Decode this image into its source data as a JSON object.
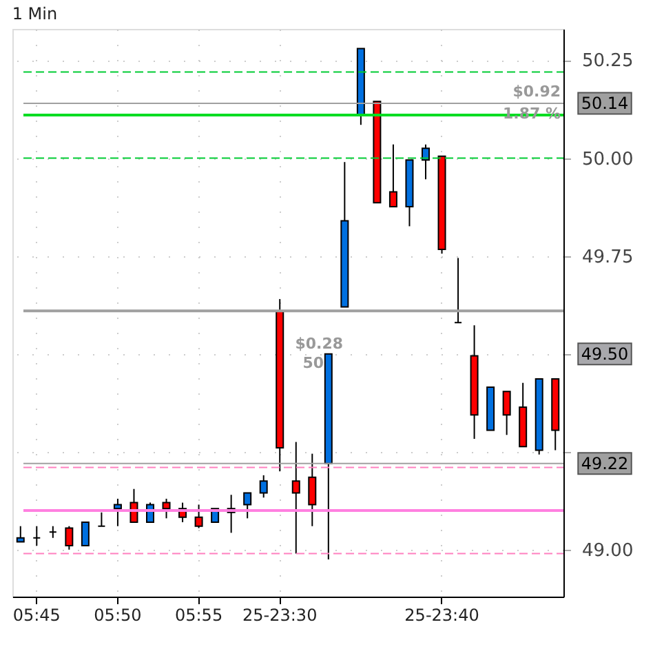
{
  "chart_data": {
    "type": "candlestick",
    "title": "1 Min",
    "categories": [
      null,
      "05:45",
      null,
      null,
      null,
      null,
      "05:50",
      null,
      null,
      null,
      null,
      "05:55",
      null,
      null,
      null,
      null,
      "25-23:30",
      null,
      null,
      null,
      null,
      null,
      null,
      null,
      null,
      null,
      "25-23:40",
      null,
      null,
      null,
      null,
      null,
      null,
      null
    ],
    "ohlc": [
      [
        49.02,
        49.06,
        49.02,
        49.03
      ],
      [
        49.03,
        49.06,
        49.01,
        49.03
      ],
      [
        49.045,
        49.06,
        49.03,
        49.045
      ],
      [
        49.055,
        49.06,
        49.0,
        49.01
      ],
      [
        49.01,
        49.07,
        49.01,
        49.07
      ],
      [
        49.06,
        49.095,
        49.06,
        49.06
      ],
      [
        49.105,
        49.13,
        49.06,
        49.115
      ],
      [
        49.12,
        49.155,
        49.07,
        49.07
      ],
      [
        49.07,
        49.12,
        49.07,
        49.115
      ],
      [
        49.12,
        49.13,
        49.08,
        49.105
      ],
      [
        49.105,
        49.12,
        49.07,
        49.083
      ],
      [
        49.083,
        49.115,
        49.055,
        49.06
      ],
      [
        49.07,
        49.105,
        49.07,
        49.105
      ],
      [
        49.095,
        49.14,
        49.043,
        49.105
      ],
      [
        49.115,
        49.145,
        49.08,
        49.145
      ],
      [
        49.145,
        49.19,
        49.133,
        49.175
      ],
      [
        49.61,
        49.64,
        49.2,
        49.26
      ],
      [
        49.175,
        49.275,
        48.99,
        49.145
      ],
      [
        49.185,
        49.245,
        49.06,
        49.115
      ],
      [
        49.22,
        49.5,
        48.975,
        49.5
      ],
      [
        49.62,
        49.99,
        49.62,
        49.84
      ],
      [
        50.11,
        50.28,
        50.085,
        50.28
      ],
      [
        50.145,
        50.145,
        49.886,
        49.886
      ],
      [
        49.914,
        50.035,
        49.876,
        49.876
      ],
      [
        49.876,
        49.995,
        49.826,
        49.995
      ],
      [
        49.995,
        50.035,
        49.946,
        50.025
      ],
      [
        50.005,
        50.005,
        49.756,
        49.767
      ],
      [
        49.58,
        49.745,
        49.58,
        49.58
      ],
      [
        49.495,
        49.573,
        49.283,
        49.344
      ],
      [
        49.305,
        49.415,
        49.305,
        49.415
      ],
      [
        49.404,
        49.404,
        49.293,
        49.344
      ],
      [
        49.364,
        49.426,
        49.263,
        49.263
      ],
      [
        49.254,
        49.436,
        49.243,
        49.436
      ],
      [
        49.436,
        49.436,
        49.254,
        49.305
      ]
    ],
    "colors": [
      "#0070e0",
      "#000000",
      "#000000",
      "#ff0000",
      "#0070e0",
      "#000000",
      "#0070e0",
      "#ff0000",
      "#0070e0",
      "#ff0000",
      "#ff0000",
      "#ff0000",
      "#0070e0",
      "#0070e0",
      "#0070e0",
      "#0070e0",
      "#ff0000",
      "#ff0000",
      "#ff0000",
      "#0070e0",
      "#0070e0",
      "#0070e0",
      "#ff0000",
      "#ff0000",
      "#0070e0",
      "#0070e0",
      "#ff0000",
      "#000000",
      "#ff0000",
      "#0070e0",
      "#ff0000",
      "#ff0000",
      "#0070e0",
      "#ff0000"
    ],
    "ylim": [
      48.88,
      50.33
    ],
    "yticks": [
      {
        "value": 49,
        "label": "49.00"
      },
      {
        "value": 49.25,
        "label": null
      },
      {
        "value": 49.5,
        "label": null
      },
      {
        "value": 49.75,
        "label": "49.75"
      },
      {
        "value": 50,
        "label": "50.00"
      },
      {
        "value": 50.25,
        "label": "50.25"
      }
    ],
    "grid": true,
    "ref_lines": [
      {
        "axis": "y",
        "value": 50.22,
        "color": "#00cc33",
        "line_style": "dashed"
      },
      {
        "axis": "y",
        "value": 50.11,
        "color": "#00dd22",
        "line_style": "solid"
      },
      {
        "axis": "y",
        "value": 50.0,
        "color": "#00cc33",
        "line_style": "dashed"
      },
      {
        "axis": "y",
        "value": 49.61,
        "color": "#a0a0a0",
        "line_style": "solid"
      },
      {
        "axis": "y",
        "value": 49.21,
        "color": "#ff80c0",
        "line_style": "dashed"
      },
      {
        "axis": "y",
        "value": 49.1,
        "color": "#ff80e0",
        "line_style": "solid"
      },
      {
        "axis": "y",
        "value": 48.99,
        "color": "#ff80c0",
        "line_style": "dashed"
      },
      {
        "axis": "y",
        "value": 50.14,
        "label": "50.14",
        "color": "#a0a0a0",
        "line_style": "solid"
      },
      {
        "axis": "y",
        "value": 49.5,
        "label": "49.50",
        "line_style": "none"
      },
      {
        "axis": "y",
        "value": 49.22,
        "label": "49.22",
        "color": "#a0a0a0",
        "line_style": "solid"
      }
    ],
    "annotations": [
      "$0.92",
      "1.87 %",
      "$0.28",
      "50"
    ]
  }
}
